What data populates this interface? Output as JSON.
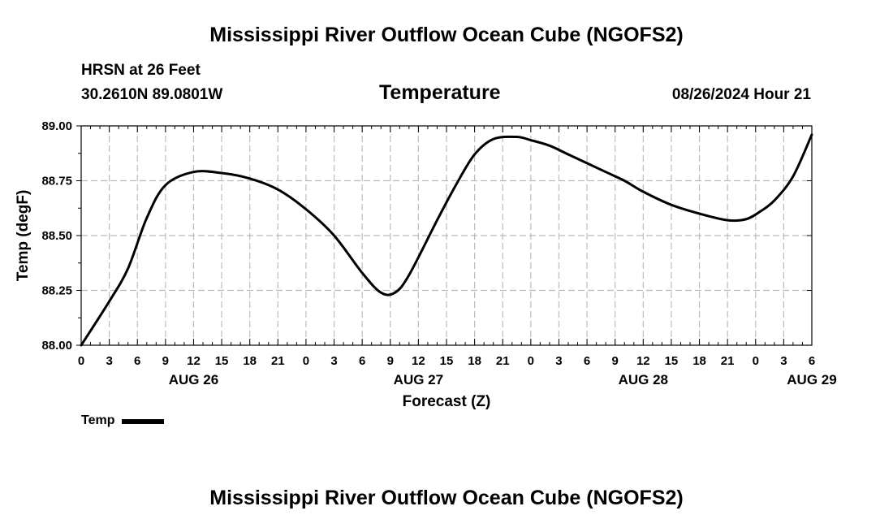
{
  "header": {
    "title": "Mississippi River Outflow Ocean Cube (NGOFS2)",
    "station": "HRSN at 26 Feet",
    "coords": "30.2610N  89.0801W",
    "subtitle": "Temperature",
    "datetime": "08/26/2024 Hour 21"
  },
  "footer": {
    "title": "Mississippi River Outflow Ocean Cube (NGOFS2)"
  },
  "legend": {
    "label": "Temp"
  },
  "colors": {
    "line": "#000000",
    "grid": "#bbbbbb",
    "axis": "#000000"
  },
  "chart_data": {
    "type": "line",
    "title": "Temperature",
    "xlabel": "Forecast (Z)",
    "ylabel": "Temp (degF)",
    "xlim": [
      0,
      78
    ],
    "ylim": [
      88.0,
      89.0
    ],
    "grid": true,
    "x_tick_step": 3,
    "x_tick_labels": [
      "0",
      "3",
      "6",
      "9",
      "12",
      "15",
      "18",
      "21",
      "0",
      "3",
      "6",
      "9",
      "12",
      "15",
      "18",
      "21",
      "0",
      "3",
      "6",
      "9",
      "12",
      "15",
      "18",
      "21",
      "0",
      "3",
      "6"
    ],
    "day_labels": [
      {
        "x": 12,
        "label": "AUG 26"
      },
      {
        "x": 36,
        "label": "AUG 27"
      },
      {
        "x": 60,
        "label": "AUG 28"
      },
      {
        "x": 78,
        "label": "AUG 29"
      }
    ],
    "y_ticks": [
      88.0,
      88.25,
      88.5,
      88.75,
      89.0
    ],
    "y_tick_labels": [
      "88.00",
      "88.25",
      "88.50",
      "88.75",
      "89.00"
    ],
    "series": [
      {
        "name": "Temp",
        "x": [
          0,
          3,
          5,
          7,
          9,
          12,
          15,
          18,
          21,
          24,
          27,
          30,
          32,
          33.5,
          35,
          38,
          40,
          42,
          44,
          46.5,
          48,
          50,
          52,
          54,
          56,
          58,
          60,
          63,
          66,
          69,
          71,
          72.5,
          74,
          76,
          78
        ],
        "y": [
          88.0,
          88.2,
          88.35,
          88.58,
          88.73,
          88.79,
          88.785,
          88.76,
          88.71,
          88.62,
          88.5,
          88.33,
          88.24,
          88.24,
          88.32,
          88.57,
          88.73,
          88.87,
          88.94,
          88.95,
          88.935,
          88.91,
          88.87,
          88.83,
          88.79,
          88.75,
          88.7,
          88.64,
          88.6,
          88.57,
          88.575,
          88.61,
          88.66,
          88.77,
          88.96
        ]
      }
    ]
  }
}
